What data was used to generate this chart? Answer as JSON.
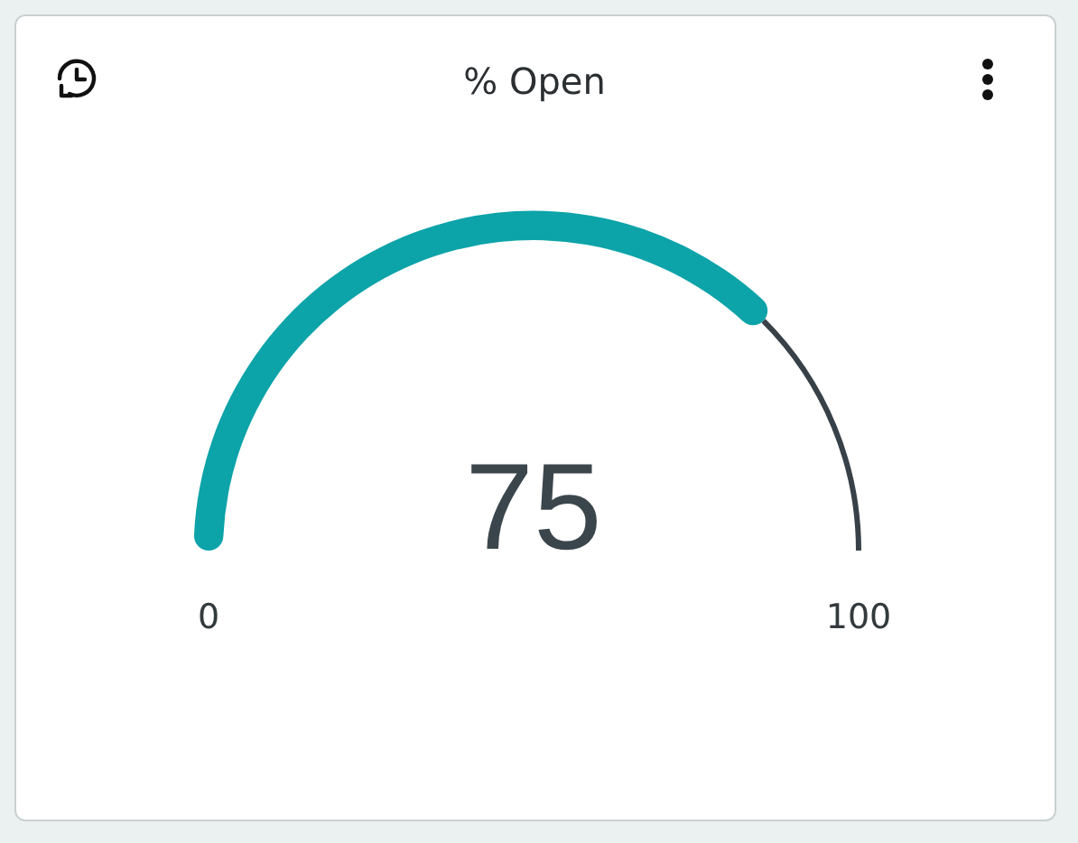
{
  "chart_data": {
    "type": "other",
    "title": "% Open",
    "values": [
      75
    ],
    "color": "#0ca3a9",
    "value_labels": [
      "75"
    ],
    "annotations": [
      "0",
      "100"
    ]
  }
}
